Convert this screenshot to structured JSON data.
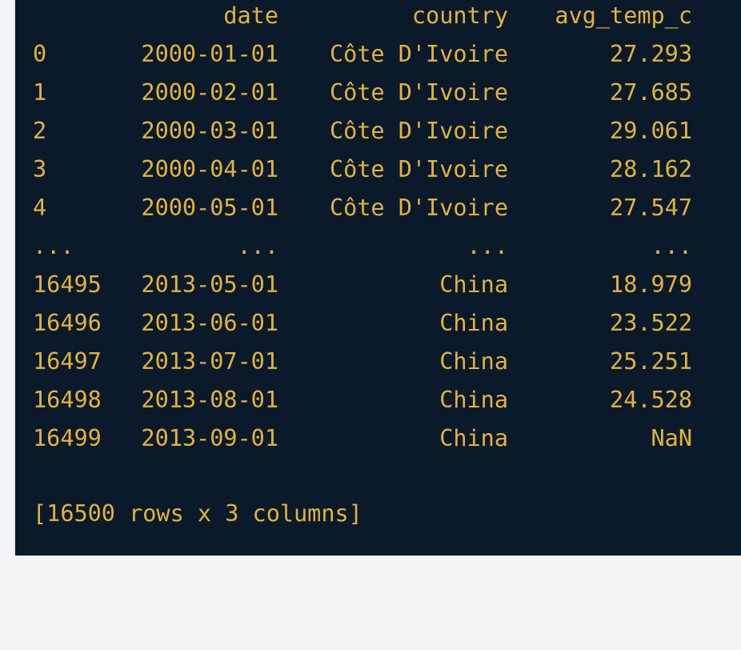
{
  "table": {
    "header": {
      "date": "date",
      "country": "country",
      "avg_temp_c": "avg_temp_c"
    },
    "rows": [
      {
        "index": "0",
        "date": "2000-01-01",
        "country": "Côte D'Ivoire",
        "avg_temp_c": "27.293"
      },
      {
        "index": "1",
        "date": "2000-02-01",
        "country": "Côte D'Ivoire",
        "avg_temp_c": "27.685"
      },
      {
        "index": "2",
        "date": "2000-03-01",
        "country": "Côte D'Ivoire",
        "avg_temp_c": "29.061"
      },
      {
        "index": "3",
        "date": "2000-04-01",
        "country": "Côte D'Ivoire",
        "avg_temp_c": "28.162"
      },
      {
        "index": "4",
        "date": "2000-05-01",
        "country": "Côte D'Ivoire",
        "avg_temp_c": "27.547"
      },
      {
        "index": "...",
        "date": "...",
        "country": "...",
        "avg_temp_c": "..."
      },
      {
        "index": "16495",
        "date": "2013-05-01",
        "country": "China",
        "avg_temp_c": "18.979"
      },
      {
        "index": "16496",
        "date": "2013-06-01",
        "country": "China",
        "avg_temp_c": "23.522"
      },
      {
        "index": "16497",
        "date": "2013-07-01",
        "country": "China",
        "avg_temp_c": "25.251"
      },
      {
        "index": "16498",
        "date": "2013-08-01",
        "country": "China",
        "avg_temp_c": "24.528"
      },
      {
        "index": "16499",
        "date": "2013-09-01",
        "country": "China",
        "avg_temp_c": "NaN"
      }
    ],
    "summary": "[16500 rows x 3 columns]"
  },
  "colors": {
    "background": "#0b1a2b",
    "text": "#e3b33b"
  }
}
